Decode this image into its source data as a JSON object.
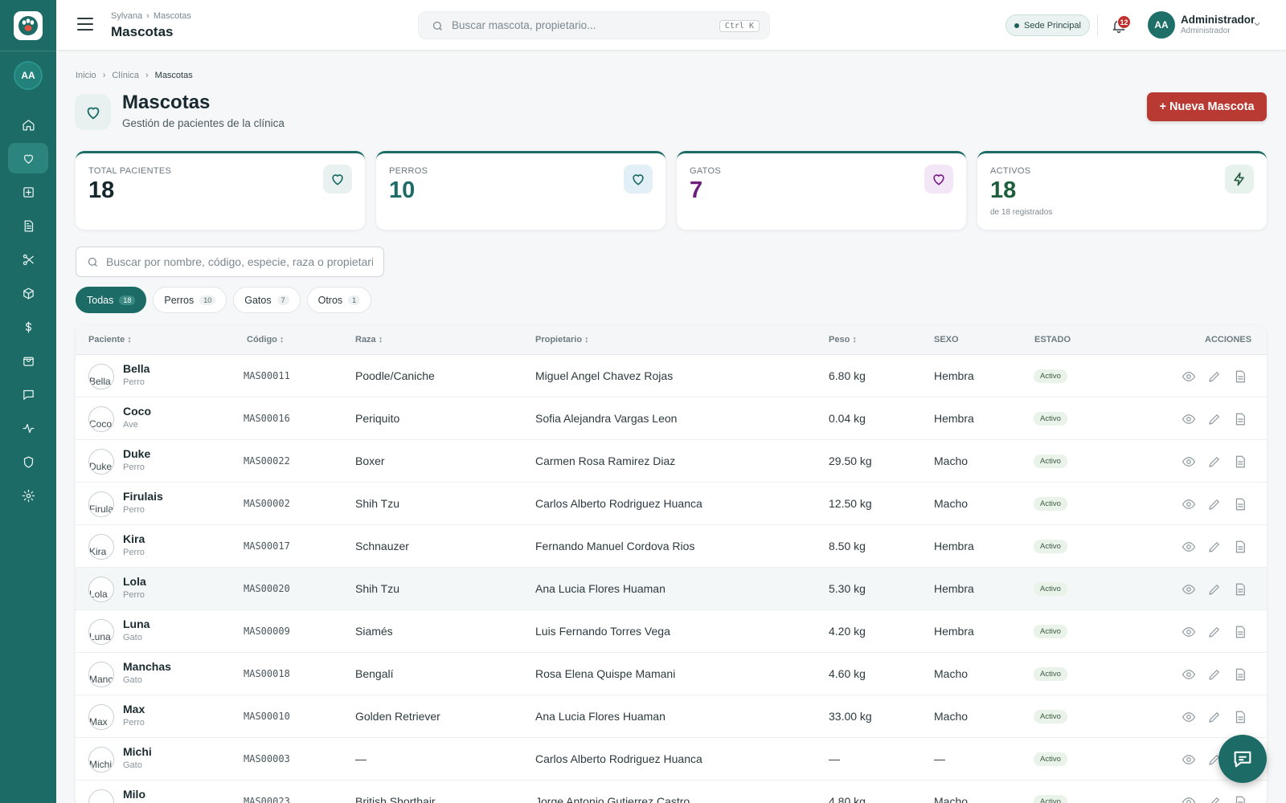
{
  "colors": {
    "sidebar": "#1c6b66",
    "accent": "#1c6b66",
    "danger": "#b83a33",
    "cats": "#7a1f8a",
    "dogs": "#1c6b66"
  },
  "sidebar": {
    "avatar": "AA",
    "items": [
      {
        "icon": "home-icon",
        "active": false
      },
      {
        "icon": "heart-icon",
        "active": true
      },
      {
        "icon": "medical-plus-icon",
        "active": false
      },
      {
        "icon": "document-icon",
        "active": false
      },
      {
        "icon": "scissors-icon",
        "active": false
      },
      {
        "icon": "box-icon",
        "active": false
      },
      {
        "icon": "dollar-icon",
        "active": false
      },
      {
        "icon": "shopping-bag-icon",
        "active": false
      },
      {
        "icon": "chat-icon",
        "active": false
      },
      {
        "icon": "activity-icon",
        "active": false
      },
      {
        "icon": "shield-icon",
        "active": false
      },
      {
        "icon": "gear-icon",
        "active": false
      }
    ]
  },
  "topbar": {
    "crumb_root": "Sylvana",
    "crumb_current": "Mascotas",
    "title": "Mascotas",
    "search_placeholder": "Buscar mascota, propietario...",
    "shortcut": "Ctrl K",
    "branch": "Sede Principal",
    "notifications": "12",
    "avatar": "AA",
    "user_name": "Administrador",
    "user_role": "Administrador"
  },
  "breadcrumb": [
    "Inicio",
    "Clínica",
    "Mascotas"
  ],
  "page": {
    "title": "Mascotas",
    "subtitle": "Gestión de pacientes de la clínica",
    "new_button": "+ Nueva Mascota"
  },
  "stats": [
    {
      "label": "TOTAL PACIENTES",
      "value": "18",
      "sub": "",
      "color": "#16282d",
      "icon_bg": "#e8f1f0"
    },
    {
      "label": "PERROS",
      "value": "10",
      "sub": "",
      "color": "#1c6b66",
      "icon_bg": "#e3eff7"
    },
    {
      "label": "GATOS",
      "value": "7",
      "sub": "",
      "color": "#6c1f7d",
      "icon_bg": "#f3e6f6"
    },
    {
      "label": "ACTIVOS",
      "value": "18",
      "sub": "de 18 registrados",
      "color": "#1e5e3d",
      "icon_bg": "#e8f2ec"
    }
  ],
  "list_search_placeholder": "Buscar por nombre, código, especie, raza o propietario",
  "filters": [
    {
      "label": "Todas",
      "count": "18",
      "active": true
    },
    {
      "label": "Perros",
      "count": "10",
      "active": false
    },
    {
      "label": "Gatos",
      "count": "7",
      "active": false
    },
    {
      "label": "Otros",
      "count": "1",
      "active": false
    }
  ],
  "table": {
    "headers": [
      "Paciente ↕",
      "Código ↕",
      "Raza ↕",
      "Propietario ↕",
      "Peso ↕",
      "SEXO",
      "ESTADO",
      "ACCIONES"
    ],
    "rows": [
      {
        "name": "Bella",
        "species": "Perro",
        "code": "MAS00011",
        "breed": "Poodle/Caniche",
        "owner": "Miguel Angel Chavez Rojas",
        "weight": "6.80 kg",
        "sex": "Hembra",
        "status": "Activo"
      },
      {
        "name": "Coco",
        "species": "Ave",
        "code": "MAS00016",
        "breed": "Periquito",
        "owner": "Sofia Alejandra Vargas Leon",
        "weight": "0.04 kg",
        "sex": "Hembra",
        "status": "Activo"
      },
      {
        "name": "Duke",
        "species": "Perro",
        "code": "MAS00022",
        "breed": "Boxer",
        "owner": "Carmen Rosa Ramirez Diaz",
        "weight": "29.50 kg",
        "sex": "Macho",
        "status": "Activo"
      },
      {
        "name": "Firulais",
        "species": "Perro",
        "code": "MAS00002",
        "breed": "Shih Tzu",
        "owner": "Carlos Alberto Rodriguez Huanca",
        "weight": "12.50 kg",
        "sex": "Macho",
        "status": "Activo"
      },
      {
        "name": "Kira",
        "species": "Perro",
        "code": "MAS00017",
        "breed": "Schnauzer",
        "owner": "Fernando Manuel Cordova Rios",
        "weight": "8.50 kg",
        "sex": "Hembra",
        "status": "Activo"
      },
      {
        "name": "Lola",
        "species": "Perro",
        "code": "MAS00020",
        "breed": "Shih Tzu",
        "owner": "Ana Lucia Flores Huaman",
        "weight": "5.30 kg",
        "sex": "Hembra",
        "status": "Activo"
      },
      {
        "name": "Luna",
        "species": "Gato",
        "code": "MAS00009",
        "breed": "Siamés",
        "owner": "Luis Fernando Torres Vega",
        "weight": "4.20 kg",
        "sex": "Hembra",
        "status": "Activo"
      },
      {
        "name": "Manchas",
        "species": "Gato",
        "code": "MAS00018",
        "breed": "Bengalí",
        "owner": "Rosa Elena Quispe Mamani",
        "weight": "4.60 kg",
        "sex": "Macho",
        "status": "Activo"
      },
      {
        "name": "Max",
        "species": "Perro",
        "code": "MAS00010",
        "breed": "Golden Retriever",
        "owner": "Ana Lucia Flores Huaman",
        "weight": "33.00 kg",
        "sex": "Macho",
        "status": "Activo"
      },
      {
        "name": "Michi",
        "species": "Gato",
        "code": "MAS00003",
        "breed": "—",
        "owner": "Carlos Alberto Rodriguez Huanca",
        "weight": "—",
        "sex": "—",
        "status": "Activo"
      },
      {
        "name": "Milo",
        "species": "",
        "code": "MAS00023",
        "breed": "British Shorthair",
        "owner": "Jorge Antonio Gutierrez Castro",
        "weight": "4.80 kg",
        "sex": "Macho",
        "status": "Activo"
      }
    ]
  }
}
